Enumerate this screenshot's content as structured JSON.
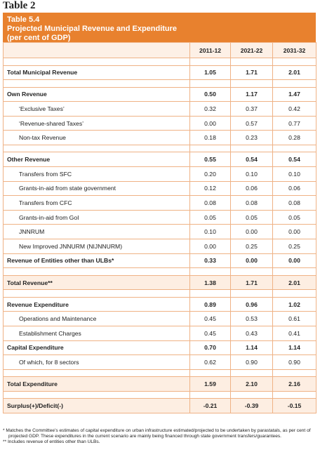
{
  "heading": "Table 2",
  "table": {
    "number": "Table 5.4",
    "title": "Projected Municipal Revenue and Expenditure",
    "subtitle": "(per cent of GDP)",
    "columns": [
      "2011-12",
      "2021-22",
      "2031-32"
    ],
    "sections": [
      {
        "rows": [
          {
            "label": "Total Municipal Revenue",
            "bold": true,
            "values": [
              "1.05",
              "1.71",
              "2.01"
            ]
          }
        ]
      },
      {
        "rows": [
          {
            "label": "Own Revenue",
            "bold": true,
            "values": [
              "0.50",
              "1.17",
              "1.47"
            ]
          },
          {
            "label": "‘Exclusive Taxes’",
            "indent": true,
            "values": [
              "0.32",
              "0.37",
              "0.42"
            ]
          },
          {
            "label": "‘Revenue-shared Taxes’",
            "indent": true,
            "values": [
              "0.00",
              "0.57",
              "0.77"
            ]
          },
          {
            "label": "Non-tax Revenue",
            "indent": true,
            "values": [
              "0.18",
              "0.23",
              "0.28"
            ]
          }
        ]
      },
      {
        "rows": [
          {
            "label": "Other Revenue",
            "bold": true,
            "values": [
              "0.55",
              "0.54",
              "0.54"
            ]
          },
          {
            "label": "Transfers from SFC",
            "indent": true,
            "values": [
              "0.20",
              "0.10",
              "0.10"
            ]
          },
          {
            "label": "Grants-in-aid from state government",
            "indent": true,
            "values": [
              "0.12",
              "0.06",
              "0.06"
            ]
          },
          {
            "label": "Transfers from CFC",
            "indent": true,
            "values": [
              "0.08",
              "0.08",
              "0.08"
            ]
          },
          {
            "label": "Grants-in-aid from GoI",
            "indent": true,
            "values": [
              "0.05",
              "0.05",
              "0.05"
            ]
          },
          {
            "label": "JNNRUM",
            "indent": true,
            "values": [
              "0.10",
              "0.00",
              "0.00"
            ]
          },
          {
            "label": "New Improved JNNURM (NIJNNURM)",
            "indent": true,
            "values": [
              "0.00",
              "0.25",
              "0.25"
            ]
          },
          {
            "label": "Revenue of Entities other than ULBs*",
            "bold": true,
            "values": [
              "0.33",
              "0.00",
              "0.00"
            ]
          }
        ]
      },
      {
        "rows": [
          {
            "label": "Total Revenue**",
            "bold": true,
            "highlight": true,
            "values": [
              "1.38",
              "1.71",
              "2.01"
            ]
          }
        ]
      },
      {
        "rows": [
          {
            "label": "Revenue Expenditure",
            "bold": true,
            "values": [
              "0.89",
              "0.96",
              "1.02"
            ]
          },
          {
            "label": "Operations and Maintenance",
            "indent": true,
            "values": [
              "0.45",
              "0.53",
              "0.61"
            ]
          },
          {
            "label": "Establishment Charges",
            "indent": true,
            "values": [
              "0.45",
              "0.43",
              "0.41"
            ]
          },
          {
            "label": "Capital Expenditure",
            "bold": true,
            "values": [
              "0.70",
              "1.14",
              "1.14"
            ]
          },
          {
            "label": "Of which, for 8 sectors",
            "indent": true,
            "values": [
              "0.62",
              "0.90",
              "0.90"
            ]
          }
        ]
      },
      {
        "rows": [
          {
            "label": "Total Expenditure",
            "bold": true,
            "highlight": true,
            "values": [
              "1.59",
              "2.10",
              "2.16"
            ]
          }
        ]
      },
      {
        "rows": [
          {
            "label": "Surplus(+)/Deficit(-)",
            "bold": true,
            "highlight": true,
            "values": [
              "-0.21",
              "-0.39",
              "-0.15"
            ]
          }
        ]
      }
    ]
  },
  "footnotes": [
    "* Matches the Committee’s estimates of capital expenditure on urban infrastructure estimated/projected to be undertaken by parastatals, as per cent of projected GDP. These expenditures in the current scenario are mainly being financed through state government transfers/guarantees.",
    "** Includes revenue of entities other than ULBs."
  ]
}
